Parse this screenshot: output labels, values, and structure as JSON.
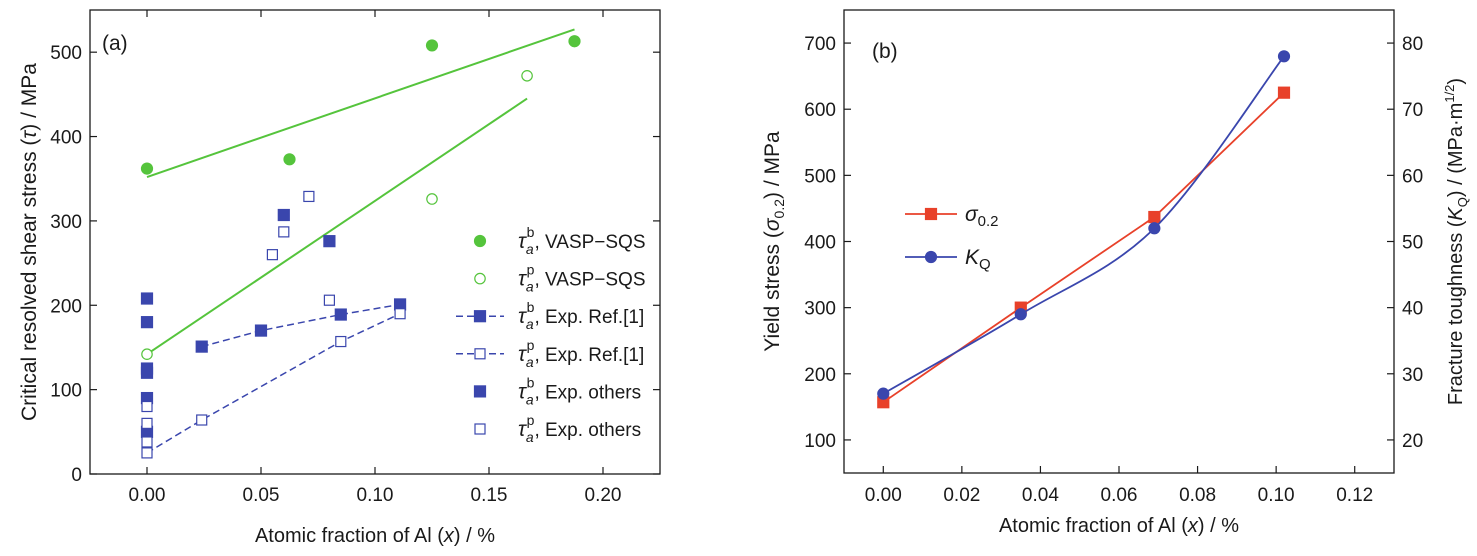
{
  "colors": {
    "green": "#55c43c",
    "blue": "#3a46ad",
    "red": "#e8412a",
    "axis": "#1a1a1a"
  },
  "chart_data": [
    {
      "panel": "(a)",
      "type": "scatter",
      "xlabel_main": "Atomic fraction of Al (",
      "xlabel_var": "x",
      "xlabel_tail": ") / %",
      "ylabel_main": "Critical resolved shear stress (",
      "ylabel_var": "τ",
      "ylabel_tail": ") / MPa",
      "xlim": [
        -0.025,
        0.225
      ],
      "ylim": [
        0,
        550
      ],
      "xticks": [
        0.0,
        0.05,
        0.1,
        0.15,
        0.2
      ],
      "xtick_labels": [
        "0.00",
        "0.05",
        "0.10",
        "0.15",
        "0.20"
      ],
      "yticks": [
        0,
        100,
        200,
        300,
        400,
        500
      ],
      "ytick_labels": [
        "0",
        "100",
        "200",
        "300",
        "400",
        "500"
      ],
      "legend_position": "right",
      "series": [
        {
          "sym": "τ",
          "sub": "a",
          "sup": "b",
          "label": ", VASP−SQS",
          "marker": "circle",
          "filled": true,
          "color": "green",
          "line": "none",
          "points": [
            [
              0.0,
              362
            ],
            [
              0.0625,
              373
            ],
            [
              0.125,
              508
            ],
            [
              0.1875,
              513
            ]
          ]
        },
        {
          "sym": "τ",
          "sub": "a",
          "sup": "p",
          "label": ", VASP−SQS",
          "marker": "circle",
          "filled": false,
          "color": "green",
          "line": "none",
          "points": [
            [
              0.0,
              142
            ],
            [
              0.125,
              326
            ],
            [
              0.1667,
              472
            ]
          ]
        },
        {
          "sym": "τ",
          "sub": "a",
          "sup": "b",
          "label": ", Exp. Ref.[1]",
          "marker": "square",
          "filled": true,
          "color": "blue",
          "line": "dashed",
          "points": [
            [
              0.024,
              151
            ],
            [
              0.05,
              170
            ],
            [
              0.085,
              189
            ],
            [
              0.111,
              201
            ]
          ]
        },
        {
          "sym": "τ",
          "sub": "a",
          "sup": "p",
          "label": ", Exp. Ref.[1]",
          "marker": "square",
          "filled": false,
          "color": "blue",
          "line": "dashed",
          "points": [
            [
              0.0,
              25
            ],
            [
              0.024,
              64
            ],
            [
              0.085,
              157
            ],
            [
              0.111,
              190
            ]
          ]
        },
        {
          "sym": "τ",
          "sub": "a",
          "sup": "b",
          "label": ", Exp. others",
          "marker": "square",
          "filled": true,
          "color": "blue",
          "line": "none",
          "points": [
            [
              0.0,
              208
            ],
            [
              0.0,
              180
            ],
            [
              0.0,
              125
            ],
            [
              0.0,
              120
            ],
            [
              0.0,
              90
            ],
            [
              0.0,
              50
            ],
            [
              0.06,
              307
            ],
            [
              0.08,
              276
            ]
          ]
        },
        {
          "sym": "τ",
          "sub": "a",
          "sup": "p",
          "label": ", Exp. others",
          "marker": "square",
          "filled": false,
          "color": "blue",
          "line": "none",
          "points": [
            [
              0.0,
              80
            ],
            [
              0.0,
              60
            ],
            [
              0.0,
              38
            ],
            [
              0.055,
              260
            ],
            [
              0.06,
              287
            ],
            [
              0.071,
              329
            ],
            [
              0.08,
              206
            ]
          ]
        }
      ],
      "fit_lines": [
        {
          "color": "green",
          "from": [
            0.0,
            352
          ],
          "to": [
            0.1875,
            527
          ]
        },
        {
          "color": "green",
          "from": [
            0.0,
            142
          ],
          "to": [
            0.1667,
            445
          ]
        }
      ]
    },
    {
      "panel": "(b)",
      "type": "line",
      "xlabel_main": "Atomic fraction of Al (",
      "xlabel_var": "x",
      "xlabel_tail": ") / %",
      "ylabel_main": "Yield stress (",
      "ylabel_var": "σ",
      "ylabel_sub": "0.2",
      "ylabel_tail": ") / MPa",
      "y2label_main": "Fracture toughness (",
      "y2label_var": "K",
      "y2label_sub": "Q",
      "y2label_mid": ") / (MPa·m",
      "y2label_sup": "1/2",
      "y2label_tail": ")",
      "xlim": [
        -0.01,
        0.13
      ],
      "ylim": [
        50,
        750
      ],
      "y2lim": [
        15,
        85
      ],
      "xticks": [
        0.0,
        0.02,
        0.04,
        0.06,
        0.08,
        0.1,
        0.12
      ],
      "xtick_labels": [
        "0.00",
        "0.02",
        "0.04",
        "0.06",
        "0.08",
        "0.10",
        "0.12"
      ],
      "yticks": [
        100,
        200,
        300,
        400,
        500,
        600,
        700
      ],
      "ytick_labels": [
        "100",
        "200",
        "300",
        "400",
        "500",
        "600",
        "700"
      ],
      "y2ticks": [
        20,
        30,
        40,
        50,
        60,
        70,
        80
      ],
      "y2tick_labels": [
        "20",
        "30",
        "40",
        "50",
        "60",
        "70",
        "80"
      ],
      "legend_position": "center-left",
      "series": [
        {
          "sym": "σ",
          "sub": "0.2",
          "name": "σ 0.2",
          "marker": "square",
          "color": "red",
          "axis": "left",
          "curve": "linear",
          "x": [
            0.0,
            0.035,
            0.069,
            0.102
          ],
          "y": [
            157,
            300,
            437,
            625
          ]
        },
        {
          "sym": "K",
          "sub": "Q",
          "name": "K Q",
          "marker": "circle",
          "color": "blue",
          "axis": "right",
          "curve": "smooth",
          "x": [
            0.0,
            0.035,
            0.069,
            0.102
          ],
          "y": [
            27,
            39,
            52,
            78
          ]
        }
      ]
    }
  ]
}
